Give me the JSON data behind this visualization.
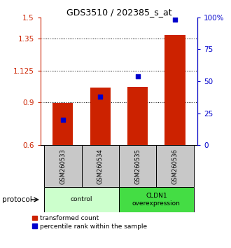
{
  "title": "GDS3510 / 202385_s_at",
  "samples": [
    "GSM260533",
    "GSM260534",
    "GSM260535",
    "GSM260536"
  ],
  "bar_values": [
    0.896,
    1.005,
    1.01,
    1.375
  ],
  "dot_values_pct": [
    20,
    38,
    54,
    98
  ],
  "ylim_left": [
    0.6,
    1.5
  ],
  "ylim_right": [
    0,
    100
  ],
  "yticks_left": [
    0.6,
    0.9,
    1.125,
    1.35,
    1.5
  ],
  "ytick_labels_left": [
    "0.6",
    "0.9",
    "1.125",
    "1.35",
    "1.5"
  ],
  "yticks_right": [
    0,
    25,
    50,
    75,
    100
  ],
  "ytick_labels_right": [
    "0",
    "25",
    "50",
    "75",
    "100%"
  ],
  "bar_color": "#CC2200",
  "dot_color": "#0000CC",
  "bar_width": 0.55,
  "groups": [
    {
      "label": "control",
      "indices": [
        0,
        1
      ],
      "color": "#CCFFCC"
    },
    {
      "label": "CLDN1\noverexpression",
      "indices": [
        2,
        3
      ],
      "color": "#44DD44"
    }
  ],
  "protocol_label": "protocol",
  "legend_bar_label": "transformed count",
  "legend_dot_label": "percentile rank within the sample",
  "hlines": [
    0.9,
    1.125,
    1.35
  ],
  "background_color": "#ffffff",
  "sample_box_color": "#C8C8C8"
}
